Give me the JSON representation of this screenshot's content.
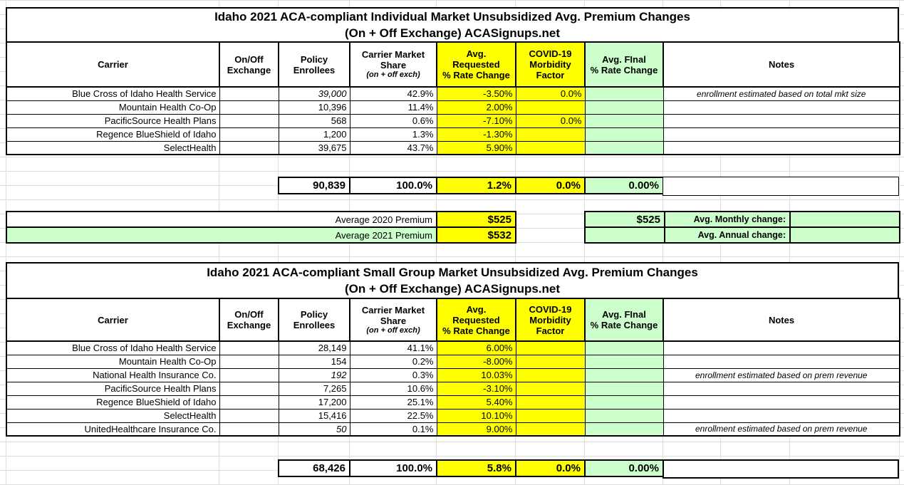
{
  "colors": {
    "highlight_yellow": "#FFFF00",
    "highlight_green": "#CCFFCC",
    "border_black": "#000000",
    "gridline_gray": "#DEDEDE"
  },
  "column_headers": [
    {
      "label": "Carrier"
    },
    {
      "label": "On/Off\nExchange"
    },
    {
      "label": "Policy\nEnrollees"
    },
    {
      "label": "Carrier Market\nShare",
      "sublabel": "(on + off exch)"
    },
    {
      "label": "Avg.\nRequested\n% Rate Change"
    },
    {
      "label": "COVID-19\nMorbidity\nFactor"
    },
    {
      "label": "Avg. FInal\n% Rate Change"
    },
    {
      "label": "Notes"
    }
  ],
  "tables": [
    {
      "title_line1": "Idaho 2021 ACA-compliant Individual Market Unsubsidized Avg. Premium Changes",
      "title_line2": "(On + Off Exchange) ACASignups.net",
      "rows": [
        {
          "cells": [
            "Blue Cross of Idaho Health Service",
            "",
            "39,000",
            "42.9%",
            "-3.50%",
            "0.0%",
            "",
            "enrollment estimated based on total mkt size"
          ],
          "estimated": true
        },
        {
          "cells": [
            "Mountain Health Co-Op",
            "",
            "10,396",
            "11.4%",
            "2.00%",
            "",
            "",
            ""
          ],
          "estimated": false
        },
        {
          "cells": [
            "PacificSource Health Plans",
            "",
            "568",
            "0.6%",
            "-7.10%",
            "0.0%",
            "",
            ""
          ],
          "estimated": false
        },
        {
          "cells": [
            "Regence BlueShield of Idaho",
            "",
            "1,200",
            "1.3%",
            "-1.30%",
            "",
            "",
            ""
          ],
          "estimated": false
        },
        {
          "cells": [
            "SelectHealth",
            "",
            "39,675",
            "43.7%",
            "5.90%",
            "",
            "",
            ""
          ],
          "estimated": false
        }
      ],
      "totals": {
        "enrollees": "90,839",
        "share": "100.0%",
        "requested": "1.2%",
        "covid": "0.0%",
        "final": "0.00%",
        "notes": ""
      }
    },
    {
      "title_line1": "Idaho 2021 ACA-compliant Small Group Market Unsubsidized Avg. Premium Changes",
      "title_line2": "(On + Off Exchange) ACASignups.net",
      "rows": [
        {
          "cells": [
            "Blue Cross of Idaho Health Service",
            "",
            "28,149",
            "41.1%",
            "6.00%",
            "",
            "",
            ""
          ],
          "estimated": false
        },
        {
          "cells": [
            "Mountain Health Co-Op",
            "",
            "154",
            "0.2%",
            "-8.00%",
            "",
            "",
            ""
          ],
          "estimated": false
        },
        {
          "cells": [
            "National Health Insurance Co.",
            "",
            "192",
            "0.3%",
            "10.03%",
            "",
            "",
            "enrollment estimated based on prem revenue"
          ],
          "estimated": true
        },
        {
          "cells": [
            "PacificSource Health Plans",
            "",
            "7,265",
            "10.6%",
            "-3.10%",
            "",
            "",
            ""
          ],
          "estimated": false
        },
        {
          "cells": [
            "Regence BlueShield of Idaho",
            "",
            "17,200",
            "25.1%",
            "5.40%",
            "",
            "",
            ""
          ],
          "estimated": false
        },
        {
          "cells": [
            "SelectHealth",
            "",
            "15,416",
            "22.5%",
            "10.10%",
            "",
            "",
            ""
          ],
          "estimated": false
        },
        {
          "cells": [
            "UnitedHealthcare Insurance Co.",
            "",
            "50",
            "0.1%",
            "9.00%",
            "",
            "",
            "enrollment estimated based on prem revenue"
          ],
          "estimated": true
        }
      ],
      "totals": {
        "enrollees": "68,426",
        "share": "100.0%",
        "requested": "5.8%",
        "covid": "0.0%",
        "final": "0.00%",
        "notes": ""
      }
    }
  ],
  "premium_summary": {
    "rows": [
      {
        "label": "Average 2020 Premium",
        "amount": "$525",
        "final_amount": "$525",
        "change_label": "Avg. Monthly change:",
        "change_value": ""
      },
      {
        "label": "Average 2021 Premium",
        "amount": "$532",
        "final_amount": "",
        "change_label": "Avg. Annual change:",
        "change_value": ""
      }
    ]
  }
}
